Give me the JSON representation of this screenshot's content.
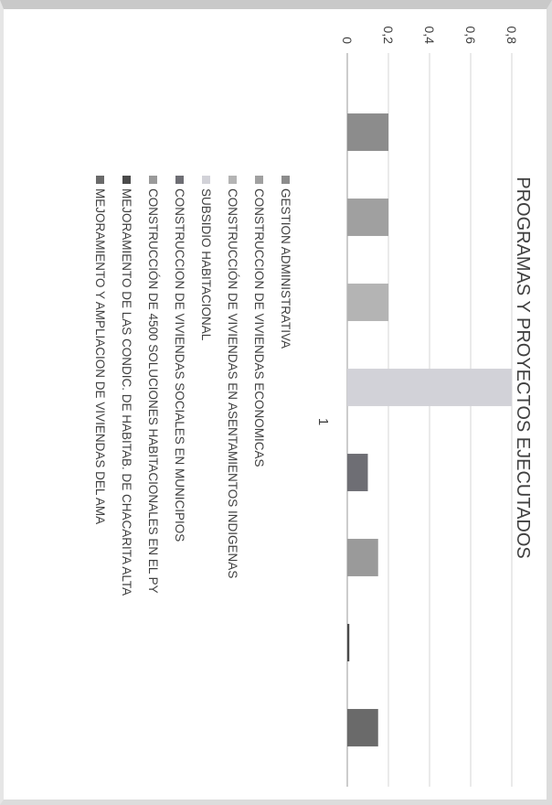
{
  "chart_data": {
    "type": "bar",
    "title": "PROGRAMAS Y PROYECTOS EJECUTADOS",
    "categories": [
      "1"
    ],
    "ylim": [
      0,
      0.8
    ],
    "yticks": [
      "0",
      "0,2",
      "0,4",
      "0,6",
      "0,8"
    ],
    "grid": true,
    "legend_position": "bottom",
    "series": [
      {
        "name": "GESTION ADMINISTRATIVA",
        "values": [
          0.2
        ],
        "color": "#8c8c8c"
      },
      {
        "name": "CONSTRUCCION DE VIVIENDAS ECONOMICAS",
        "values": [
          0.2
        ],
        "color": "#a0a0a0"
      },
      {
        "name": "CONSTRUCCIÓN DE VIVIENDAS EN ASENTAMIENTOS INDIGENAS",
        "values": [
          0.2
        ],
        "color": "#b4b4b4"
      },
      {
        "name": "SUBSIDIO HABITACIONAL",
        "values": [
          0.8
        ],
        "color": "#d2d2d8"
      },
      {
        "name": "CONSTRUCCION DE VIVIENDAS SOCIALES EN MUNICIPIOS",
        "values": [
          0.1
        ],
        "color": "#6e6e74"
      },
      {
        "name": "CONSTRUCCIÓN DE 4500 SOLUCIONES HABITACIONALES EN EL PY",
        "values": [
          0.15
        ],
        "color": "#9a9a9a"
      },
      {
        "name": "MEJORAMIENTO DE LAS CONDIC. DE HABITAB. DE CHACARITA ALTA",
        "values": [
          0.01
        ],
        "color": "#4a4a4a"
      },
      {
        "name": "MEJORAMIENTO Y AMPLIACION DE VIVIENDAS DEL AMA",
        "values": [
          0.15
        ],
        "color": "#6a6a6a"
      }
    ]
  }
}
